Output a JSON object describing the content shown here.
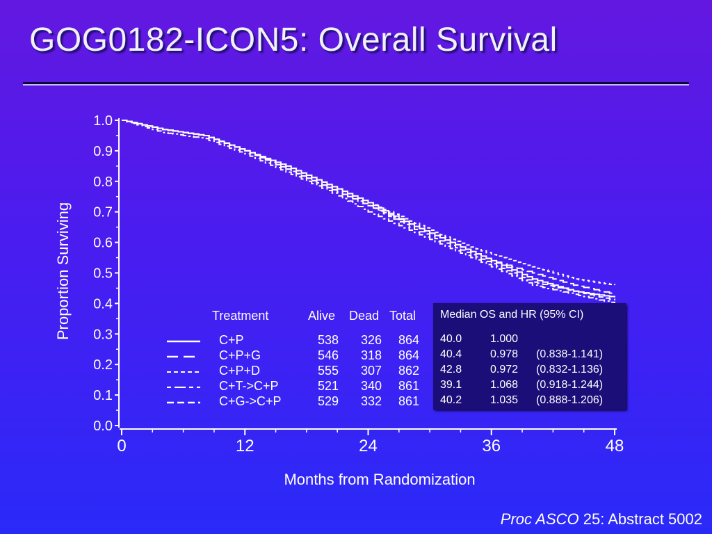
{
  "slide": {
    "title": "GOG0182-ICON5:  Overall Survival",
    "citation_italic": "Proc ASCO",
    "citation_rest": " 25: Abstract 5002"
  },
  "colors": {
    "background_top": "#6318e0",
    "background_bottom": "#2a2af8",
    "line": "#ffffff",
    "hr_box": "#1c0e78"
  },
  "table": {
    "headers": {
      "treatment": "Treatment",
      "alive": "Alive",
      "dead": "Dead",
      "total": "Total"
    },
    "rows": [
      {
        "arm": "C+P",
        "alive": "538",
        "dead": "326",
        "total": "864"
      },
      {
        "arm": "C+P+G",
        "alive": "546",
        "dead": "318",
        "total": "864"
      },
      {
        "arm": "C+P+D",
        "alive": "555",
        "dead": "307",
        "total": "862"
      },
      {
        "arm": "C+T->C+P",
        "alive": "521",
        "dead": "340",
        "total": "861"
      },
      {
        "arm": "C+G->C+P",
        "alive": "529",
        "dead": "332",
        "total": "861"
      }
    ]
  },
  "hr_box": {
    "title": "Median OS and HR (95% CI)",
    "rows": [
      {
        "median": "40.0",
        "hr": "1.000",
        "ci": ""
      },
      {
        "median": "40.4",
        "hr": "0.978",
        "ci": "(0.838-1.141)"
      },
      {
        "median": "42.8",
        "hr": "0.972",
        "ci": "(0.832-1.136)"
      },
      {
        "median": "39.1",
        "hr": "1.068",
        "ci": "(0.918-1.244)"
      },
      {
        "median": "40.2",
        "hr": "1.035",
        "ci": "(0.888-1.206)"
      }
    ]
  },
  "chart_data": {
    "type": "line",
    "xlabel": "Months from Randomization",
    "ylabel": "Proportion Surviving",
    "xlim": [
      0,
      48
    ],
    "ylim": [
      0,
      1
    ],
    "x_ticks": [
      "0",
      "12",
      "24",
      "36",
      "48"
    ],
    "y_ticks": [
      "0.0",
      "0.1",
      "0.2",
      "0.3",
      "0.4",
      "0.5",
      "0.6",
      "0.7",
      "0.8",
      "0.9",
      "1.0"
    ],
    "series": [
      {
        "name": "C+P",
        "dash": "solid",
        "x": [
          0,
          4,
          8,
          12,
          16,
          20,
          24,
          28,
          32,
          36,
          40,
          44,
          48
        ],
        "y": [
          1.0,
          0.97,
          0.95,
          0.9,
          0.85,
          0.79,
          0.73,
          0.66,
          0.6,
          0.54,
          0.48,
          0.44,
          0.42
        ]
      },
      {
        "name": "C+P+G",
        "dash": "long-dash",
        "x": [
          0,
          4,
          8,
          12,
          16,
          20,
          24,
          28,
          32,
          36,
          40,
          44,
          48
        ],
        "y": [
          1.0,
          0.97,
          0.95,
          0.9,
          0.84,
          0.78,
          0.72,
          0.66,
          0.6,
          0.54,
          0.5,
          0.46,
          0.43
        ]
      },
      {
        "name": "C+P+D",
        "dash": "short-dash",
        "x": [
          0,
          4,
          8,
          12,
          16,
          20,
          24,
          28,
          32,
          36,
          40,
          44,
          48
        ],
        "y": [
          1.0,
          0.97,
          0.95,
          0.9,
          0.85,
          0.79,
          0.73,
          0.67,
          0.61,
          0.56,
          0.52,
          0.48,
          0.46
        ]
      },
      {
        "name": "C+T->C+P",
        "dash": "dash-dot",
        "x": [
          0,
          4,
          8,
          12,
          16,
          20,
          24,
          28,
          32,
          36,
          40,
          44,
          48
        ],
        "y": [
          1.0,
          0.96,
          0.94,
          0.89,
          0.83,
          0.77,
          0.7,
          0.64,
          0.58,
          0.52,
          0.46,
          0.43,
          0.4
        ]
      },
      {
        "name": "C+G->C+P",
        "dash": "medium-dash",
        "x": [
          0,
          4,
          8,
          12,
          16,
          20,
          24,
          28,
          32,
          36,
          40,
          44,
          48
        ],
        "y": [
          1.0,
          0.97,
          0.95,
          0.9,
          0.84,
          0.78,
          0.72,
          0.65,
          0.59,
          0.53,
          0.47,
          0.44,
          0.41
        ]
      }
    ]
  }
}
